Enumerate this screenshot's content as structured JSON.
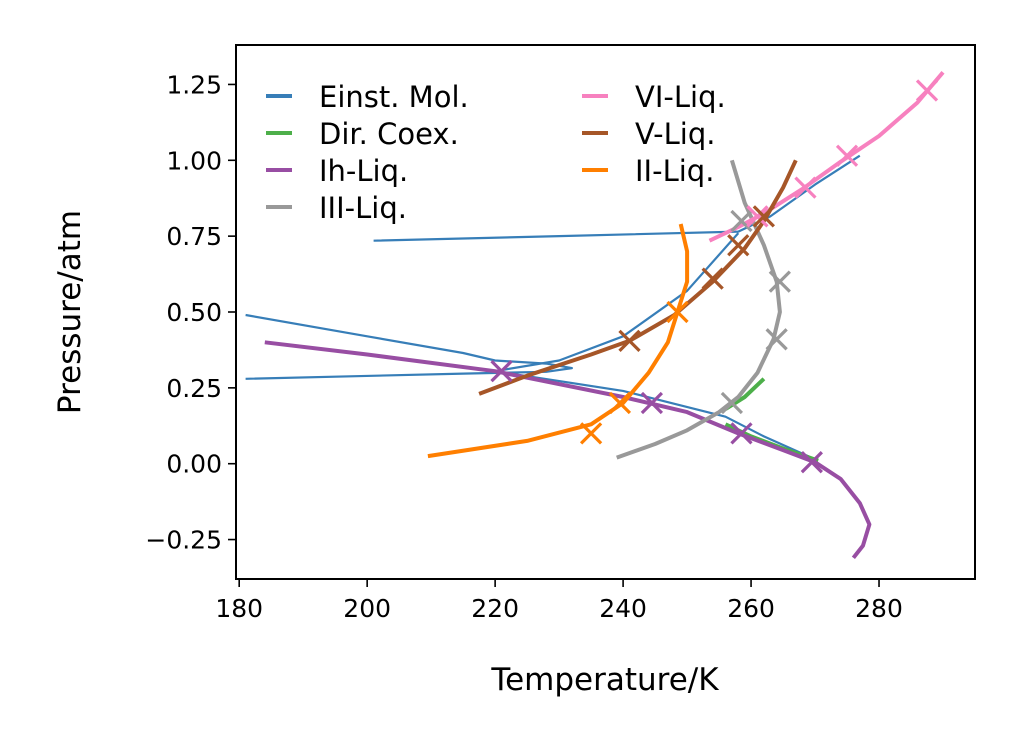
{
  "chart_data": {
    "type": "line",
    "xlabel": "Temperature/K",
    "ylabel": "Pressure/atm",
    "xlim": [
      179.5,
      295
    ],
    "ylim": [
      -0.38,
      1.38
    ],
    "xticks": [
      "180",
      "200",
      "220",
      "240",
      "260",
      "280"
    ],
    "xtick_values": [
      180,
      200,
      220,
      240,
      260,
      280
    ],
    "yticks": [
      "−0.25",
      "0.00",
      "0.25",
      "0.50",
      "0.75",
      "1.00",
      "1.25"
    ],
    "ytick_values": [
      -0.25,
      0.0,
      0.25,
      0.5,
      0.75,
      1.0,
      1.25
    ],
    "grid": false,
    "legend_position": "top-left",
    "legend_columns": 2,
    "series": [
      {
        "name": "Einst. Mol.",
        "color": "#377eb8",
        "style": "line-thin",
        "segments": [
          [
            [
              201,
              0.735
            ],
            [
              230,
              0.75
            ],
            [
              258,
              0.765
            ],
            [
              263,
              0.815
            ],
            [
              270,
              0.92
            ],
            [
              277,
              1.015
            ]
          ],
          [
            [
              181,
              0.49
            ],
            [
              200,
              0.42
            ],
            [
              215,
              0.365
            ],
            [
              220,
              0.34
            ],
            [
              228,
              0.33
            ],
            [
              232,
              0.315
            ],
            [
              228,
              0.303
            ],
            [
              215,
              0.297
            ],
            [
              181,
              0.28
            ]
          ],
          [
            [
              220,
              0.305
            ],
            [
              240,
              0.24
            ],
            [
              256,
              0.155
            ],
            [
              262,
              0.09
            ],
            [
              270,
              0.015
            ]
          ],
          [
            [
              220,
              0.305
            ],
            [
              230,
              0.34
            ],
            [
              240,
              0.42
            ],
            [
              250,
              0.57
            ],
            [
              258,
              0.76
            ]
          ]
        ]
      },
      {
        "name": "Dir. Coex.",
        "color": "#4daf4a",
        "style": "line",
        "segments": [
          [
            [
              256,
              0.13
            ],
            [
              260,
              0.09
            ],
            [
              265,
              0.05
            ],
            [
              270.5,
              0.01
            ]
          ],
          [
            [
              256,
              0.18
            ],
            [
              259,
              0.22
            ],
            [
              262,
              0.28
            ]
          ]
        ],
        "markers": []
      },
      {
        "name": "Ih-Liq.",
        "color": "#984ea3",
        "style": "line",
        "segments": [
          [
            [
              184,
              0.4
            ],
            [
              200,
              0.36
            ],
            [
              220,
              0.305
            ],
            [
              240,
              0.22
            ],
            [
              250,
              0.17
            ],
            [
              258,
              0.1
            ],
            [
              265,
              0.045
            ],
            [
              270,
              0.005
            ],
            [
              274,
              -0.05
            ],
            [
              277,
              -0.13
            ],
            [
              278.5,
              -0.2
            ],
            [
              277.5,
              -0.27
            ],
            [
              276,
              -0.31
            ]
          ]
        ],
        "markers": [
          [
            221,
            0.305
          ],
          [
            244.5,
            0.2
          ],
          [
            258.5,
            0.1
          ],
          [
            269.5,
            0.005
          ]
        ]
      },
      {
        "name": "III-Liq.",
        "color": "#999999",
        "style": "line",
        "segments": [
          [
            [
              239,
              0.02
            ],
            [
              245,
              0.065
            ],
            [
              250,
              0.11
            ],
            [
              255,
              0.17
            ],
            [
              258,
              0.22
            ],
            [
              261,
              0.3
            ],
            [
              263.5,
              0.41
            ],
            [
              264.5,
              0.5
            ],
            [
              264,
              0.6
            ],
            [
              262,
              0.72
            ],
            [
              259,
              0.86
            ],
            [
              257,
              1.0
            ]
          ]
        ],
        "markers": [
          [
            257,
            0.2
          ],
          [
            264,
            0.41
          ],
          [
            264.5,
            0.6
          ],
          [
            258.5,
            0.8
          ]
        ]
      },
      {
        "name": "VI-Liq.",
        "color": "#f781bf",
        "style": "line",
        "segments": [
          [
            [
              253.5,
              0.735
            ],
            [
              258,
              0.78
            ],
            [
              262,
              0.825
            ],
            [
              268,
              0.905
            ],
            [
              274,
              0.995
            ],
            [
              280,
              1.08
            ],
            [
              286,
              1.19
            ],
            [
              290,
              1.29
            ]
          ]
        ],
        "markers": [
          [
            261,
            0.815
          ],
          [
            268.5,
            0.91
          ],
          [
            275,
            1.015
          ],
          [
            287.5,
            1.23
          ]
        ]
      },
      {
        "name": "V-Liq.",
        "color": "#a65628",
        "style": "line",
        "segments": [
          [
            [
              217.5,
              0.23
            ],
            [
              225,
              0.29
            ],
            [
              235,
              0.36
            ],
            [
              241,
              0.405
            ],
            [
              248,
              0.49
            ],
            [
              254,
              0.6
            ],
            [
              259,
              0.71
            ],
            [
              262,
              0.8
            ],
            [
              265,
              0.91
            ],
            [
              267,
              1.0
            ]
          ]
        ],
        "markers": [
          [
            241,
            0.405
          ],
          [
            254,
            0.61
          ],
          [
            258,
            0.72
          ],
          [
            262,
            0.815
          ]
        ]
      },
      {
        "name": "II-Liq.",
        "color": "#ff7f00",
        "style": "line",
        "segments": [
          [
            [
              209.5,
              0.025
            ],
            [
              225,
              0.075
            ],
            [
              235,
              0.13
            ],
            [
              240,
              0.2
            ],
            [
              244,
              0.3
            ],
            [
              247,
              0.4
            ],
            [
              248.5,
              0.5
            ],
            [
              250,
              0.6
            ],
            [
              250,
              0.7
            ],
            [
              249,
              0.79
            ]
          ]
        ],
        "markers": [
          [
            235,
            0.1
          ],
          [
            239.5,
            0.2
          ],
          [
            248.5,
            0.5
          ]
        ]
      }
    ],
    "legend": {
      "col1": [
        "Einst. Mol.",
        "Dir. Coex.",
        "Ih-Liq.",
        "III-Liq."
      ],
      "col2": [
        "VI-Liq.",
        "V-Liq.",
        "II-Liq."
      ]
    }
  }
}
